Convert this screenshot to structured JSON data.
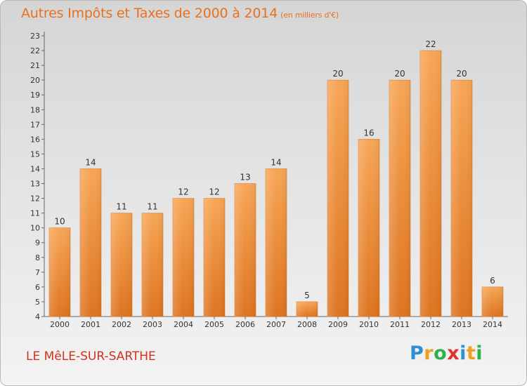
{
  "page": {
    "title": "Autres Impôts et Taxes de 2000 à 2014",
    "unit": "(en milliers d'€)",
    "town": "LE MêLE-SUR-SARTHE",
    "logo": [
      "P",
      "r",
      "o",
      "x",
      "i",
      "t",
      "i"
    ]
  },
  "colors": {
    "bar_light": "#f7a656",
    "bar_dark": "#de7420",
    "title": "#e8701e",
    "town": "#d1331d",
    "logo": [
      "#2f8fd6",
      "#f0a020",
      "#2bb24c",
      "#e33030",
      "#2f8fd6",
      "#f0a020",
      "#2bb24c"
    ]
  },
  "chart_data": {
    "type": "bar",
    "title": "Autres Impôts et Taxes de 2000 à 2014",
    "subtitle": "(en milliers d'€)",
    "categories": [
      "2000",
      "2001",
      "2002",
      "2003",
      "2004",
      "2005",
      "2006",
      "2007",
      "2008",
      "2009",
      "2010",
      "2011",
      "2012",
      "2013",
      "2014"
    ],
    "values": [
      10,
      14,
      11,
      11,
      12,
      12,
      13,
      14,
      5,
      20,
      16,
      20,
      22,
      20,
      6
    ],
    "ylim": [
      4,
      23
    ],
    "yticks": [
      4,
      5,
      6,
      7,
      8,
      9,
      10,
      11,
      12,
      13,
      14,
      15,
      16,
      17,
      18,
      19,
      20,
      21,
      22,
      23
    ],
    "grid": false,
    "data_labels": true
  }
}
